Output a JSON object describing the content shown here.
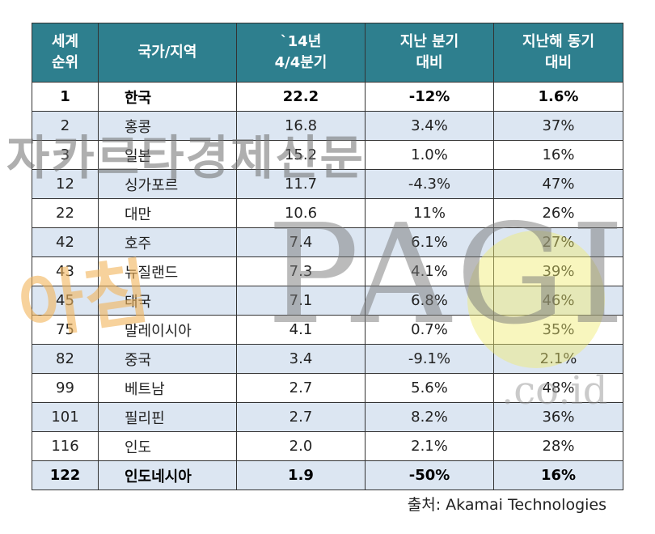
{
  "table": {
    "headers": [
      [
        "세계",
        "순위"
      ],
      [
        "국가/지역"
      ],
      [
        "`14년",
        "4/4분기"
      ],
      [
        "지난 분기",
        "대비"
      ],
      [
        "지난해 동기",
        "대비"
      ]
    ],
    "rows": [
      {
        "rank": "1",
        "country": "한국",
        "value": "22.2",
        "qoq": "-12%",
        "yoy": "1.6%"
      },
      {
        "rank": "2",
        "country": "홍콩",
        "value": "16.8",
        "qoq": "3.4%",
        "yoy": "37%"
      },
      {
        "rank": "3",
        "country": "일본",
        "value": "15.2",
        "qoq": "1.0%",
        "yoy": "16%"
      },
      {
        "rank": "12",
        "country": "싱가포르",
        "value": "11.7",
        "qoq": "-4.3%",
        "yoy": "47%"
      },
      {
        "rank": "22",
        "country": "대만",
        "value": "10.6",
        "qoq": "11%",
        "yoy": "26%"
      },
      {
        "rank": "42",
        "country": "호주",
        "value": "7.4",
        "qoq": "6.1%",
        "yoy": "27%"
      },
      {
        "rank": "43",
        "country": "뉴질랜드",
        "value": "7.3",
        "qoq": "4.1%",
        "yoy": "39%"
      },
      {
        "rank": "45",
        "country": "태국",
        "value": "7.1",
        "qoq": "6.8%",
        "yoy": "46%"
      },
      {
        "rank": "75",
        "country": "말레이시아",
        "value": "4.1",
        "qoq": "0.7%",
        "yoy": "35%"
      },
      {
        "rank": "82",
        "country": "중국",
        "value": "3.4",
        "qoq": "-9.1%",
        "yoy": "2.1%"
      },
      {
        "rank": "99",
        "country": "베트남",
        "value": "2.7",
        "qoq": "5.6%",
        "yoy": "48%"
      },
      {
        "rank": "101",
        "country": "필리핀",
        "value": "2.7",
        "qoq": "8.2%",
        "yoy": "36%"
      },
      {
        "rank": "116",
        "country": "인도",
        "value": "2.0",
        "qoq": "2.1%",
        "yoy": "28%"
      },
      {
        "rank": "122",
        "country": "인도네시아",
        "value": "1.9",
        "qoq": "-50%",
        "yoy": "16%"
      }
    ]
  },
  "source": "출처: Akamai Technologies",
  "watermarks": {
    "korean": "자카르타경제신문",
    "handwritten": "아침",
    "logo": "PAGI",
    "domain": ".co.id"
  },
  "colors": {
    "header_bg": "#2e7f8e",
    "alt_row_bg": "#dce6f2"
  }
}
